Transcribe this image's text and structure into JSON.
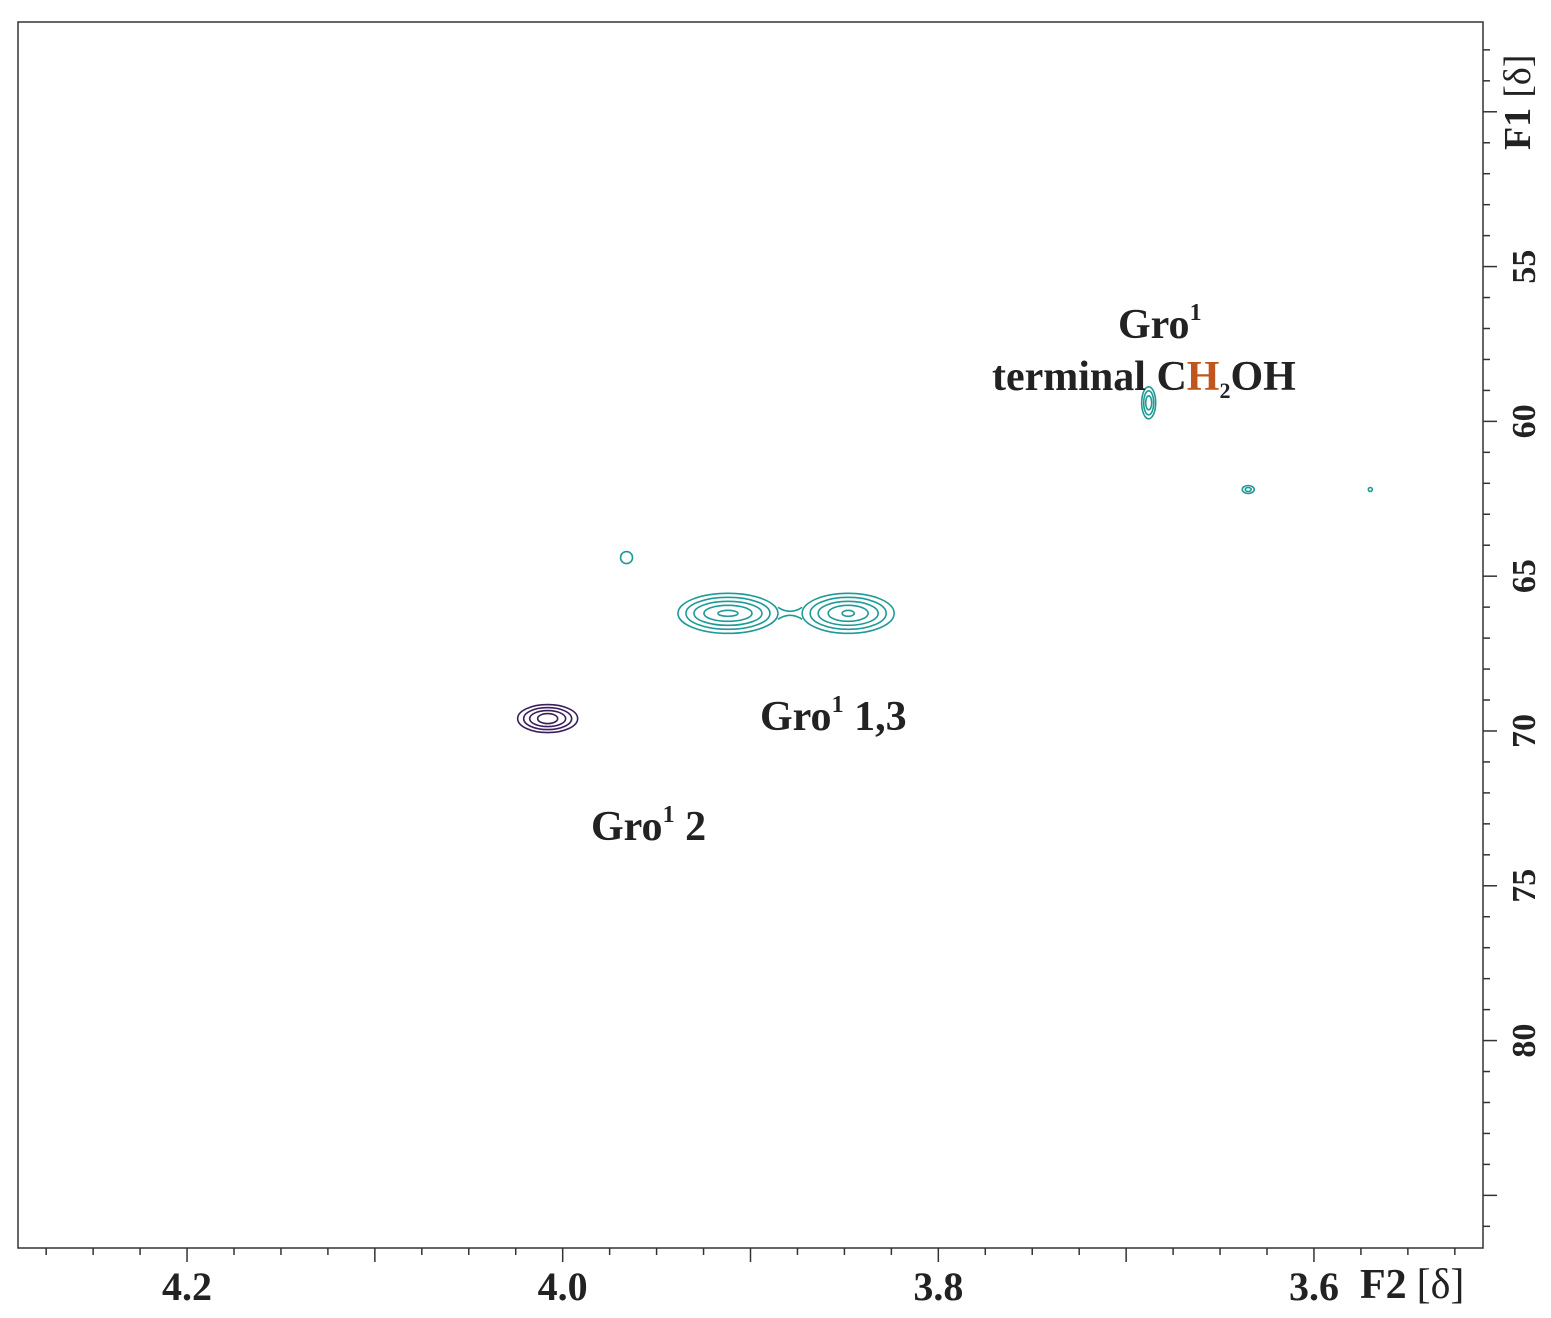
{
  "chart_data": {
    "type": "contour",
    "xlabel_main": "F2",
    "xlabel_unit": "[δ]",
    "ylabel_main": "F1",
    "ylabel_unit": "[δ]",
    "xlim": [
      4.29,
      3.51
    ],
    "ylim": [
      47.1,
      86.7
    ],
    "x_ticks": [
      "4.2",
      "4.0",
      "3.8",
      "3.6"
    ],
    "x_tick_values": [
      4.2,
      4.0,
      3.8,
      3.6
    ],
    "y_ticks": [
      "55",
      "60",
      "65",
      "70",
      "75",
      "80"
    ],
    "y_tick_values": [
      55,
      60,
      65,
      70,
      75,
      80
    ],
    "colors": {
      "cyan": "#1f9a96",
      "purple": "#3a1f5c",
      "highlight": "#c0561e",
      "text": "#222222"
    },
    "peaks": [
      {
        "x": 3.912,
        "y": 66.2,
        "color": "cyan"
      },
      {
        "x": 3.848,
        "y": 66.2,
        "color": "cyan"
      },
      {
        "x": 4.008,
        "y": 69.6,
        "color": "purple"
      },
      {
        "x": 3.688,
        "y": 59.4,
        "color": "cyan"
      },
      {
        "x": 3.966,
        "y": 64.4,
        "color": "cyan"
      },
      {
        "x": 3.635,
        "y": 62.2,
        "color": "cyan"
      },
      {
        "x": 3.57,
        "y": 62.2,
        "color": "cyan"
      }
    ],
    "annotations": [
      {
        "id": "gro-terminal",
        "line1": "Gro",
        "line1_sup": "1",
        "line2_pre": "terminal C",
        "line2_highlight": "H",
        "line2_sub": "2",
        "line2_post": "OH"
      },
      {
        "id": "gro-13",
        "text": "Gro",
        "sup": "1",
        "rest": " 1,3"
      },
      {
        "id": "gro-2",
        "text": "Gro",
        "sup": "1",
        "rest": " 2"
      }
    ]
  }
}
